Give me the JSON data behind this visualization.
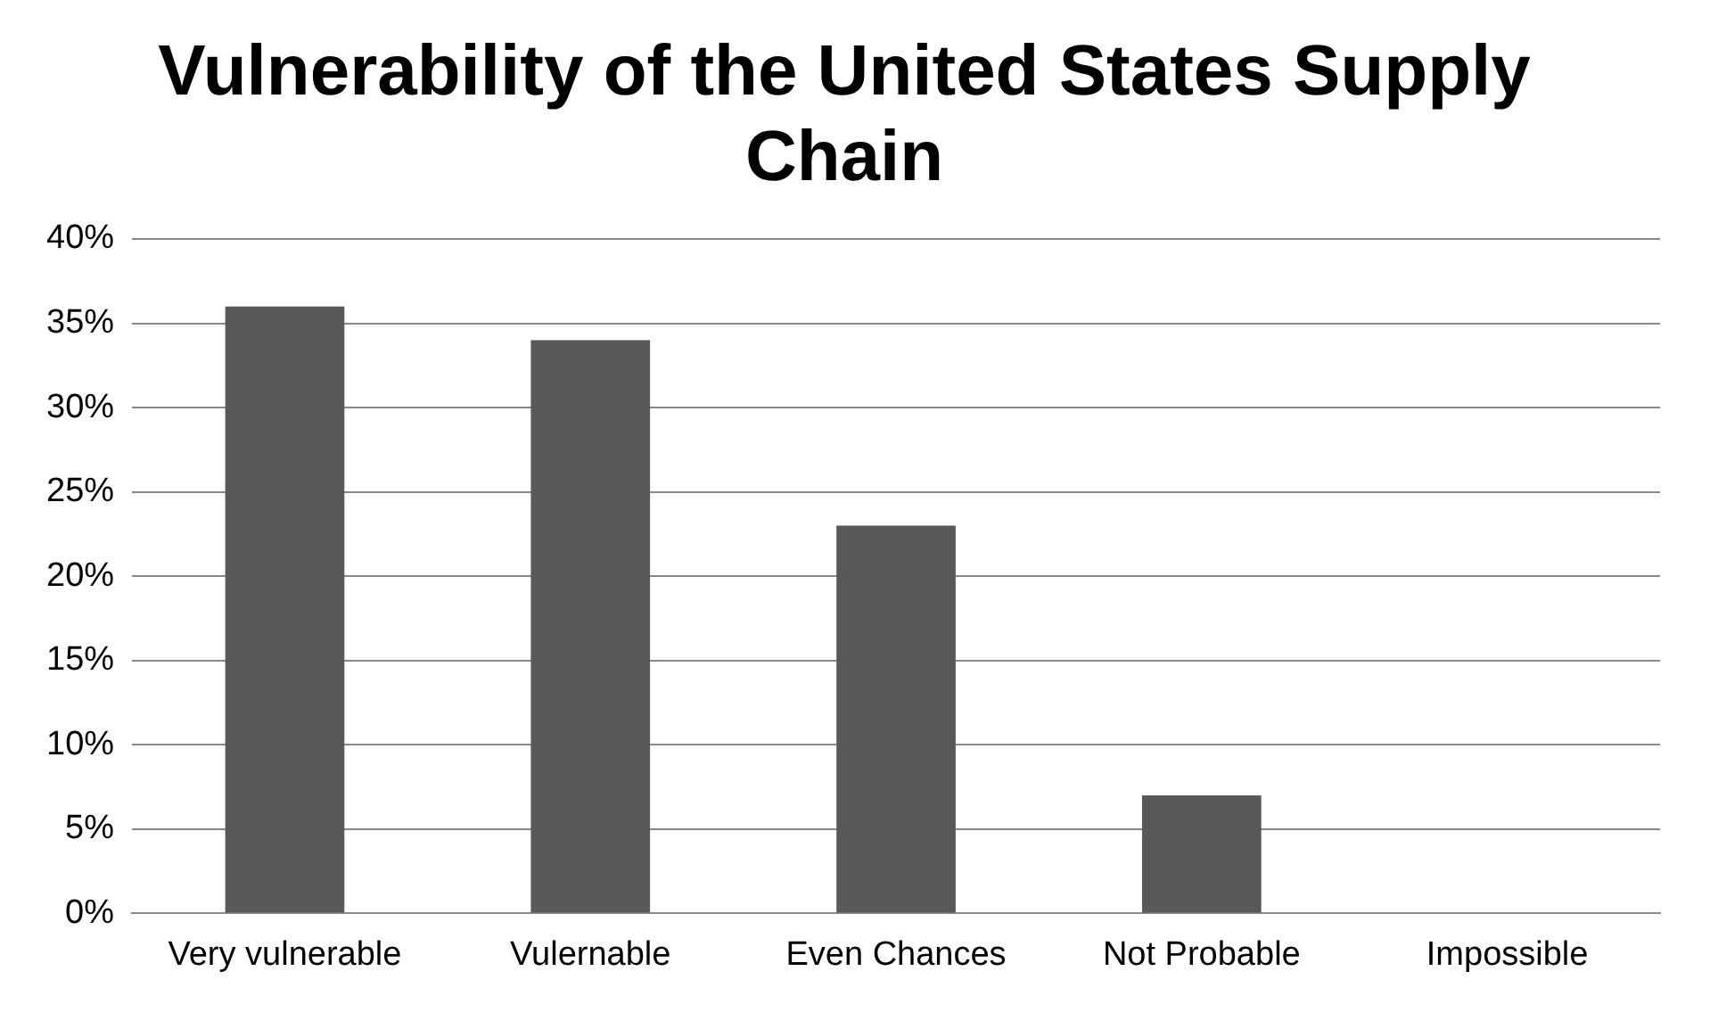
{
  "chart_data": {
    "type": "bar",
    "title": "Vulnerability of the United States Supply Chain",
    "categories": [
      "Very vulnerable",
      "Vulernable",
      "Even Chances",
      "Not Probable",
      "Impossible"
    ],
    "values": [
      36,
      34,
      23,
      7,
      0
    ],
    "color": "#595959",
    "ylim": [
      0,
      40
    ],
    "yticks": [
      {
        "value": 0,
        "label": "0%"
      },
      {
        "value": 5,
        "label": "5%"
      },
      {
        "value": 10,
        "label": "10%"
      },
      {
        "value": 15,
        "label": "15%"
      },
      {
        "value": 20,
        "label": "20%"
      },
      {
        "value": 25,
        "label": "25%"
      },
      {
        "value": 30,
        "label": "30%"
      },
      {
        "value": 35,
        "label": "35%"
      },
      {
        "value": 40,
        "label": "40%"
      }
    ],
    "grid": "y",
    "legend": false
  }
}
